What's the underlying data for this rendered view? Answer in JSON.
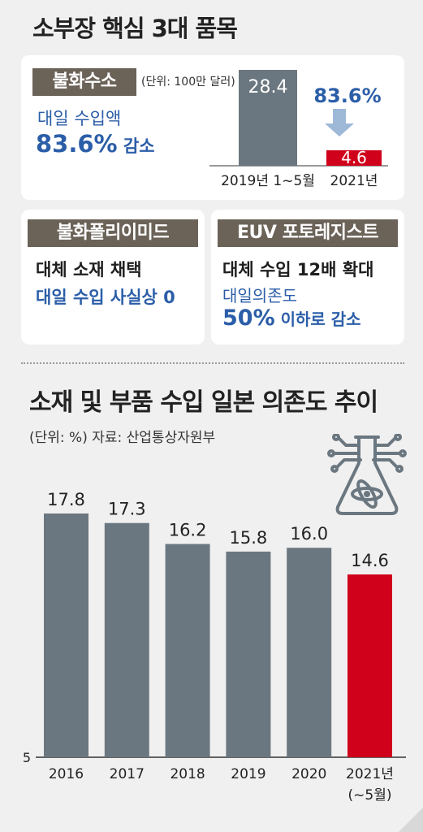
{
  "header": {
    "title": "소부장 핵심 3대 품목"
  },
  "hydrogen_fluoride": {
    "tag": "불화수소",
    "unit_note": "(단위: 100만 달러)",
    "line1": "대일 수입액",
    "line2_value": "83.6%",
    "line2_suffix": " 감소",
    "decrease_label": "83.6%",
    "chart_data": {
      "type": "bar",
      "categories": [
        "2019년 1~5월",
        "2021년"
      ],
      "values": [
        28.4,
        4.6
      ],
      "value_labels": [
        "28.4",
        "4.6"
      ],
      "colors": [
        "#6b7780",
        "#d0021b"
      ]
    }
  },
  "polyimide": {
    "tag": "불화폴리이미드",
    "line1": "대체 소재 채택",
    "line2": "대일 수입 사실상 0"
  },
  "euv": {
    "tag": "EUV 포토레지스트",
    "line1": "대체 수입 12배 확대",
    "line2": "대일의존도",
    "line3_value": "50%",
    "line3_suffix": " 이하로 감소"
  },
  "trend": {
    "title": "소재 및 부품 수입 일본 의존도 추이",
    "unit": "(단위: %) 자료: 산업통상자원부",
    "icon": "flask-atom-circuit-icon",
    "chart_data": {
      "type": "bar",
      "categories": [
        "2016",
        "2017",
        "2018",
        "2019",
        "2020",
        "2021년"
      ],
      "category_sublabels": [
        "",
        "",
        "",
        "",
        "",
        "(~5월)"
      ],
      "values": [
        17.8,
        17.3,
        16.2,
        15.8,
        16.0,
        14.6
      ],
      "value_labels": [
        "17.8",
        "17.3",
        "16.2",
        "15.8",
        "16.0",
        "14.6"
      ],
      "ylim": [
        5,
        18
      ],
      "y_tick_label": "5",
      "colors": [
        "#6b7780",
        "#6b7780",
        "#6b7780",
        "#6b7780",
        "#6b7780",
        "#d0021b"
      ]
    }
  }
}
